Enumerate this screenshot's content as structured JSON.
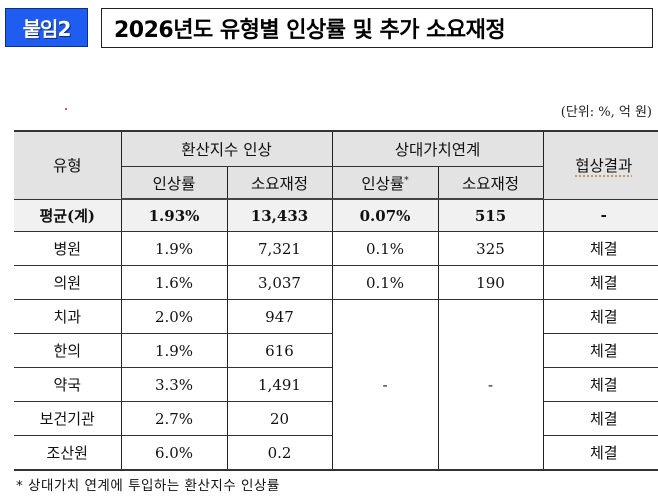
{
  "header": {
    "badge": "붙임2",
    "title": "2026년도 유형별 인상률 및 추가 소요재정",
    "badge_color": "#1f5cf0"
  },
  "unit_note": "(단위: %, 억 원)",
  "table": {
    "col_type": "유형",
    "group1": "환산지수 인상",
    "group2": "상대가치연계",
    "col_result": "협상결과",
    "sub_rate": "인상률",
    "sub_budget": "소요재정",
    "sub_rate2": "인상률",
    "sub_rate2_mark": "*",
    "sub_budget2": "소요재정",
    "header_bg": "#e3e3e3",
    "rows": [
      {
        "type": "평균(계)",
        "rate": "1.93%",
        "budget": "13,433",
        "rv_rate": "0.07%",
        "rv_budget": "515",
        "result": "-"
      },
      {
        "type": "병원",
        "rate": "1.9%",
        "budget": "7,321",
        "rv_rate": "0.1%",
        "rv_budget": "325",
        "result": "체결"
      },
      {
        "type": "의원",
        "rate": "1.6%",
        "budget": "3,037",
        "rv_rate": "0.1%",
        "rv_budget": "190",
        "result": "체결"
      },
      {
        "type": "치과",
        "rate": "2.0%",
        "budget": "947",
        "result": "체결"
      },
      {
        "type": "한의",
        "rate": "1.9%",
        "budget": "616",
        "result": "체결"
      },
      {
        "type": "약국",
        "rate": "3.3%",
        "budget": "1,491",
        "result": "체결"
      },
      {
        "type": "보건기관",
        "rate": "2.7%",
        "budget": "20",
        "result": "체결"
      },
      {
        "type": "조산원",
        "rate": "6.0%",
        "budget": "0.2",
        "result": "체결"
      }
    ],
    "merged_rv_rate": "-",
    "merged_rv_budget": "-"
  },
  "footnote": "* 상대가치 연계에 투입하는 환산지수 인상률"
}
